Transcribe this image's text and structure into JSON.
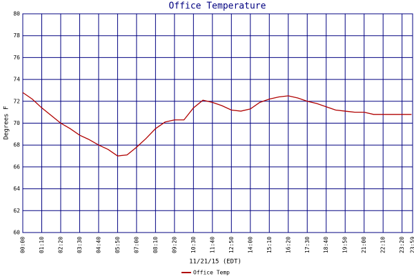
{
  "chart_data": {
    "type": "line",
    "title": "Office Temperature",
    "xlabel": "11/21/15 (EDT)",
    "ylabel": "Degrees F",
    "x": [
      0,
      35,
      70,
      105,
      140,
      175,
      210,
      245,
      280,
      315,
      350,
      385,
      420,
      455,
      490,
      525,
      560,
      595,
      630,
      665,
      700,
      735,
      770,
      805,
      840,
      875,
      910,
      945,
      980,
      1015,
      1050,
      1085,
      1120,
      1155,
      1190,
      1225,
      1260,
      1295,
      1330,
      1365,
      1400,
      1435
    ],
    "series": [
      {
        "name": "Office Temp",
        "color": "#b00000",
        "values": [
          72.8,
          72.2,
          71.4,
          70.7,
          70.0,
          69.5,
          68.9,
          68.5,
          68.0,
          67.6,
          67.0,
          67.1,
          67.8,
          68.6,
          69.5,
          70.1,
          70.3,
          70.3,
          71.4,
          72.1,
          71.9,
          71.6,
          71.2,
          71.1,
          71.3,
          71.9,
          72.2,
          72.4,
          72.5,
          72.3,
          72.0,
          71.8,
          71.5,
          71.2,
          71.1,
          71.0,
          71.0,
          70.8,
          70.8,
          70.8,
          70.8,
          70.8
        ]
      }
    ],
    "xlim": [
      0,
      1439
    ],
    "xticks": [
      {
        "value": 0,
        "label": "00:00"
      },
      {
        "value": 70,
        "label": "01:10"
      },
      {
        "value": 140,
        "label": "02:20"
      },
      {
        "value": 210,
        "label": "03:30"
      },
      {
        "value": 280,
        "label": "04:40"
      },
      {
        "value": 350,
        "label": "05:50"
      },
      {
        "value": 420,
        "label": "07:00"
      },
      {
        "value": 490,
        "label": "08:10"
      },
      {
        "value": 560,
        "label": "09:20"
      },
      {
        "value": 630,
        "label": "10:30"
      },
      {
        "value": 700,
        "label": "11:40"
      },
      {
        "value": 770,
        "label": "12:50"
      },
      {
        "value": 840,
        "label": "14:00"
      },
      {
        "value": 910,
        "label": "15:10"
      },
      {
        "value": 980,
        "label": "16:20"
      },
      {
        "value": 1050,
        "label": "17:30"
      },
      {
        "value": 1120,
        "label": "18:40"
      },
      {
        "value": 1190,
        "label": "19:50"
      },
      {
        "value": 1260,
        "label": "21:00"
      },
      {
        "value": 1330,
        "label": "22:10"
      },
      {
        "value": 1400,
        "label": "23:20"
      },
      {
        "value": 1439,
        "label": "23:59"
      }
    ],
    "ylim": [
      60,
      80
    ],
    "yticks": [
      60,
      62,
      64,
      66,
      68,
      70,
      72,
      74,
      76,
      78,
      80
    ],
    "grid": true,
    "grid_color": "#000080"
  }
}
